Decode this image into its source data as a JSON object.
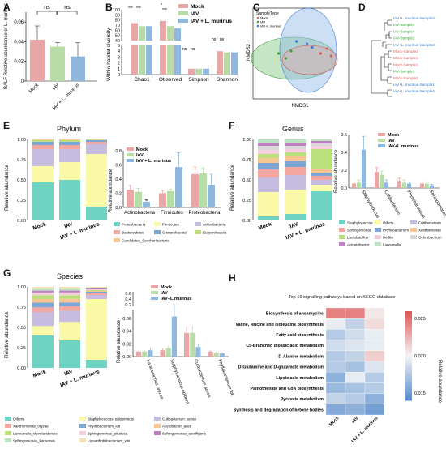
{
  "panels": {
    "A": {
      "label": "A",
      "chart_data": {
        "type": "bar",
        "ylabel": "BALF Relative abundance of L. murinus",
        "categories": [
          "Mock",
          "IAV",
          "IAV + L. murinus"
        ],
        "values": [
          0.042,
          0.035,
          0.025
        ],
        "errors": [
          0.014,
          0.004,
          0.014
        ],
        "colors": [
          "#e9a6a7",
          "#b8dca8",
          "#8fb8dc"
        ],
        "ylim": [
          0,
          0.07
        ],
        "yticks": [
          "0",
          "0.02",
          "0.04",
          "0.06"
        ],
        "annotations": [
          "ns",
          "ns"
        ]
      }
    },
    "B": {
      "label": "B",
      "chart_data": {
        "type": "bar",
        "ylabel": "Within-habitat diversity",
        "categories": [
          "Chao1",
          "Observed",
          "Simpson",
          "Shannon"
        ],
        "series": [
          {
            "name": "Mock",
            "values": [
              74,
              78,
              1.0,
              4.0
            ],
            "color": "#e9a6a7"
          },
          {
            "name": "IAV",
            "values": [
              68,
              68,
              1.0,
              3.8
            ],
            "color": "#b8dca8"
          },
          {
            "name": "IAV + L. murinus",
            "values": [
              68,
              64,
              1.0,
              3.8
            ],
            "color": "#8fb8dc"
          }
        ],
        "yticks_top": [
          "40",
          "50",
          "60",
          "70",
          "80",
          "90",
          "100"
        ],
        "yticks_bottom": [
          "0",
          "1",
          "2",
          "3",
          "4",
          "5"
        ],
        "annotations": [
          "***",
          "***",
          "*",
          "***",
          "ns",
          "ns",
          "ns",
          "ns"
        ]
      }
    },
    "C": {
      "label": "C",
      "chart_data": {
        "type": "scatter",
        "xlabel": "NMDS1",
        "ylabel": "NMDS2",
        "legend_title": "SampleType",
        "series": [
          {
            "name": "Mock",
            "color": "#e05a5a",
            "x": [
              0.24,
              0.28,
              0.18
            ],
            "y": [
              0.04,
              -0.02,
              0.0
            ]
          },
          {
            "name": "IAV",
            "color": "#3aa03a",
            "x": [
              -0.22,
              -0.1,
              -0.15
            ],
            "y": [
              0.0,
              0.02,
              -0.04
            ]
          },
          {
            "name": "IAV+L.murinus",
            "color": "#3a7ad8",
            "x": [
              0.05,
              0.1,
              -0.05
            ],
            "y": [
              0.08,
              0.05,
              0.1
            ]
          }
        ]
      }
    },
    "D": {
      "label": "D",
      "leaves": [
        {
          "text": "IAV+L. murinus-Sample3",
          "color": "#2a7ad8"
        },
        {
          "text": "IAV-Sample3",
          "color": "#2fa02f"
        },
        {
          "text": "IAV-Sample4",
          "color": "#2fa02f"
        },
        {
          "text": "IAV-Sample2",
          "color": "#2fa02f"
        },
        {
          "text": "IAV+L. murinus-Sample2",
          "color": "#2a7ad8"
        },
        {
          "text": "Mock-Sample2",
          "color": "#e05a5a"
        },
        {
          "text": "Mock-Sample4",
          "color": "#e05a5a"
        },
        {
          "text": "Mock-Sample1",
          "color": "#e05a5a"
        },
        {
          "text": "IAV-Sample1",
          "color": "#2fa02f"
        },
        {
          "text": "Mock-Sample3",
          "color": "#e05a5a"
        },
        {
          "text": "IAV+L. murinus-Sample1",
          "color": "#2a7ad8"
        },
        {
          "text": "IAV+L. murinus-Sample4",
          "color": "#2a7ad8"
        }
      ]
    },
    "E": {
      "label": "E",
      "title": "Phylum",
      "stack": {
        "ylabel": "Relative abundance",
        "categories": [
          "Mock",
          "IAV",
          "IAV + L. murinus"
        ],
        "yticks": [
          "0.00",
          "0.25",
          "0.50",
          "0.75",
          "1.00"
        ],
        "layers": [
          {
            "name": "Proteobacteria",
            "color": "#6fd3c3",
            "values": [
              0.47,
              0.5,
              0.17
            ]
          },
          {
            "name": "Firmicutes",
            "color": "#fafaa6",
            "values": [
              0.2,
              0.22,
              0.65
            ]
          },
          {
            "name": "Actinobacteria",
            "color": "#c6bce0",
            "values": [
              0.21,
              0.16,
              0.12
            ]
          },
          {
            "name": "Bacteroidetes",
            "color": "#f4a6a0",
            "values": [
              0.05,
              0.05,
              0.03
            ]
          },
          {
            "name": "Crenarchaeota",
            "color": "#7ba7d6",
            "values": [
              0.04,
              0.04,
              0.02
            ]
          },
          {
            "name": "Euryarchaeota",
            "color": "#b9e07a",
            "values": [
              0.02,
              0.02,
              0.005
            ]
          },
          {
            "name": "Candidatus_Saccharibacteria",
            "color": "#f7c58f",
            "values": [
              0.01,
              0.01,
              0.005
            ]
          }
        ]
      },
      "bars": {
        "ylabel": "Relative abundance",
        "categories": [
          "Actinobacteria",
          "Firmicutes",
          "Proteobacteria"
        ],
        "yticks": [
          "0.0",
          "0.2",
          "0.4",
          "0.6",
          "0.8"
        ],
        "ylim": [
          0,
          0.8
        ],
        "series": [
          {
            "name": "Mock",
            "color": "#e9a6a7",
            "values": [
              0.25,
              0.2,
              0.47
            ]
          },
          {
            "name": "IAV",
            "color": "#b8dca8",
            "values": [
              0.22,
              0.23,
              0.48
            ]
          },
          {
            "name": "IAV + L. murinus",
            "color": "#8fb8dc",
            "values": [
              0.08,
              0.57,
              0.32
            ]
          }
        ],
        "errors": [
          [
            0.06,
            0.04,
            0.1
          ],
          [
            0.05,
            0.03,
            0.08
          ],
          [
            0.03,
            0.2,
            0.15
          ]
        ],
        "annotations": [
          "**"
        ]
      }
    },
    "F": {
      "label": "F",
      "title": "Genus",
      "stack": {
        "ylabel": "Relative abundance",
        "categories": [
          "Mock",
          "IAV",
          "IAV + L. murinus"
        ],
        "yticks": [
          "0.00",
          "0.25",
          "0.50",
          "0.75",
          "1.00"
        ],
        "layers": [
          {
            "name": "Staphylococcus",
            "color": "#6fd3c3",
            "values": [
              0.05,
              0.08,
              0.36
            ]
          },
          {
            "name": "Others",
            "color": "#fafaa6",
            "values": [
              0.3,
              0.3,
              0.08
            ]
          },
          {
            "name": "Cutibacterium",
            "color": "#c6bce0",
            "values": [
              0.18,
              0.18,
              0.06
            ]
          },
          {
            "name": "Sphingomonas",
            "color": "#f4a6a0",
            "values": [
              0.1,
              0.1,
              0.05
            ]
          },
          {
            "name": "Phyllobacterium",
            "color": "#7ba7d6",
            "values": [
              0.08,
              0.07,
              0.04
            ]
          },
          {
            "name": "Xanthomonas",
            "color": "#f7c58f",
            "values": [
              0.06,
              0.06,
              0.04
            ]
          },
          {
            "name": "Lactobacillus",
            "color": "#b9e07a",
            "values": [
              0.05,
              0.05,
              0.25
            ]
          },
          {
            "name": "Delftia",
            "color": "#f7cde0",
            "values": [
              0.05,
              0.04,
              0.04
            ]
          },
          {
            "name": "Ochrobactrum",
            "color": "#d9d9d9",
            "values": [
              0.05,
              0.04,
              0.03
            ]
          },
          {
            "name": "Acinetobacter",
            "color": "#bf80c0",
            "values": [
              0.04,
              0.04,
              0.03
            ]
          },
          {
            "name": "Lawsonella",
            "color": "#bbe3c0",
            "values": [
              0.04,
              0.04,
              0.02
            ]
          }
        ]
      },
      "bars": {
        "ylabel": "Relative abundance",
        "categories": [
          "Staphylococcus",
          "Cutibacterium",
          "Phyllobacterium",
          "Sphingomonas"
        ],
        "yticks": [
          "0.0",
          "0.2",
          "0.4",
          "0.6"
        ],
        "ylim": [
          0,
          0.6
        ],
        "series": [
          {
            "name": "Mock",
            "color": "#e9a6a7",
            "values": [
              0.05,
              0.18,
              0.08,
              0.05
            ]
          },
          {
            "name": "IAV",
            "color": "#b8dca8",
            "values": [
              0.06,
              0.15,
              0.06,
              0.05
            ]
          },
          {
            "name": "IAV+L.murinus",
            "color": "#8fb8dc",
            "values": [
              0.43,
              0.06,
              0.05,
              0.03
            ]
          }
        ],
        "errors": [
          [
            0.02,
            0.05,
            0.03,
            0.02
          ],
          [
            0.03,
            0.04,
            0.03,
            0.02
          ],
          [
            0.15,
            0.03,
            0.02,
            0.01
          ]
        ]
      }
    },
    "G": {
      "label": "G",
      "title": "Species",
      "stack": {
        "ylabel": "Relative abundance",
        "categories": [
          "Mock",
          "IAV",
          "IAV + L. murinus"
        ],
        "yticks": [
          "0.00",
          "0.25",
          "0.50",
          "0.75",
          "1.00"
        ],
        "layers": [
          {
            "name": "Others",
            "color": "#6fd3c3",
            "values": [
              0.35,
              0.3,
              0.1
            ]
          },
          {
            "name": "Staphylococcus_epidermidis",
            "color": "#fafaa6",
            "values": [
              0.1,
              0.2,
              0.75
            ]
          },
          {
            "name": "Cutibacterium_acnes",
            "color": "#c6bce0",
            "values": [
              0.15,
              0.12,
              0.05
            ]
          },
          {
            "name": "Xanthomonas_oryzae",
            "color": "#f4a6a0",
            "values": [
              0.05,
              0.05,
              0.02
            ]
          },
          {
            "name": "Phyllobacterium_loti",
            "color": "#7ba7d6",
            "values": [
              0.05,
              0.04,
              0.02
            ]
          },
          {
            "name": "Acetobacter_aceti",
            "color": "#f7c58f",
            "values": [
              0.04,
              0.04,
              0.01
            ]
          },
          {
            "name": "Lawsonella_clevelandensis",
            "color": "#b9e07a",
            "values": [
              0.04,
              0.04,
              0.01
            ]
          },
          {
            "name": "Sphingomonas_pituitosa",
            "color": "#f7cde0",
            "values": [
              0.03,
              0.03,
              0.01
            ]
          },
          {
            "name": "Sphingomonas_azotifigens",
            "color": "#bf80c0",
            "values": [
              0.02,
              0.02,
              0.01
            ]
          },
          {
            "name": "Sphingomonas_koreensis",
            "color": "#bbe3c0",
            "values": [
              0.02,
              0.02,
              0.01
            ]
          },
          {
            "name": "Lipoarthritisbacterium_vini",
            "color": "#f9e0b0",
            "values": [
              0.02,
              0.02,
              0.01
            ]
          }
        ]
      },
      "bars": {
        "ylabel": "Relative abundance",
        "categories": [
          "Xanthomonas oryzae",
          "Staphylococcus epidermidis",
          "Cutibacterium acnes",
          "Phyllobacterium loti"
        ],
        "yticks_top": [
          "0.2",
          "0.4",
          "0.6"
        ],
        "yticks_bottom": [
          "0.00",
          "0.02",
          "0.04",
          "0.06"
        ],
        "series": [
          {
            "name": "Mock",
            "color": "#e9a6a7",
            "values": [
              0.008,
              0.01,
              0.037,
              0.008
            ]
          },
          {
            "name": "IAV",
            "color": "#b8dca8",
            "values": [
              0.008,
              0.013,
              0.037,
              0.006
            ]
          },
          {
            "name": "IAV+L.murinus",
            "color": "#8fb8dc",
            "values": [
              0.01,
              0.063,
              0.015,
              0.005
            ]
          }
        ]
      }
    },
    "H": {
      "label": "H",
      "title": "Top 10 signalling pathways based on KEGG database",
      "chart_data": {
        "type": "heatmap",
        "columns": [
          "Mock",
          "IAV",
          "IAV + L. murinus"
        ],
        "rows": [
          "Biosynthesis of ansamycins",
          "Valine, leucine and isoleucine biosynthesis",
          "Fatty acid biosynthesis",
          "C5-Branched dibasic acid metabolism",
          "D-Alanine metabolism",
          "D-Glutamine and D-glutamate metabolism",
          "Lipoic acid metabolism",
          "Pantothenate and CoA biosynthesis",
          "Pyruvate metabolism",
          "Synthesis and degradation of ketone bodies"
        ],
        "values": [
          [
            0.0245,
            0.0245,
            0.0205
          ],
          [
            0.0195,
            0.018,
            0.021
          ],
          [
            0.0175,
            0.0185,
            0.0195
          ],
          [
            0.0185,
            0.019,
            0.0195
          ],
          [
            0.0175,
            0.018,
            0.0215
          ],
          [
            0.0175,
            0.017,
            0.019
          ],
          [
            0.016,
            0.0195,
            0.0175
          ],
          [
            0.0165,
            0.017,
            0.0175
          ],
          [
            0.018,
            0.0175,
            0.016
          ],
          [
            0.0155,
            0.016,
            0.015
          ]
        ],
        "colorbar_title": "Relative abundance",
        "colorbar_ticks": [
          "0.015",
          "0.020",
          "0.025"
        ],
        "range": [
          0.014,
          0.026
        ]
      }
    }
  }
}
